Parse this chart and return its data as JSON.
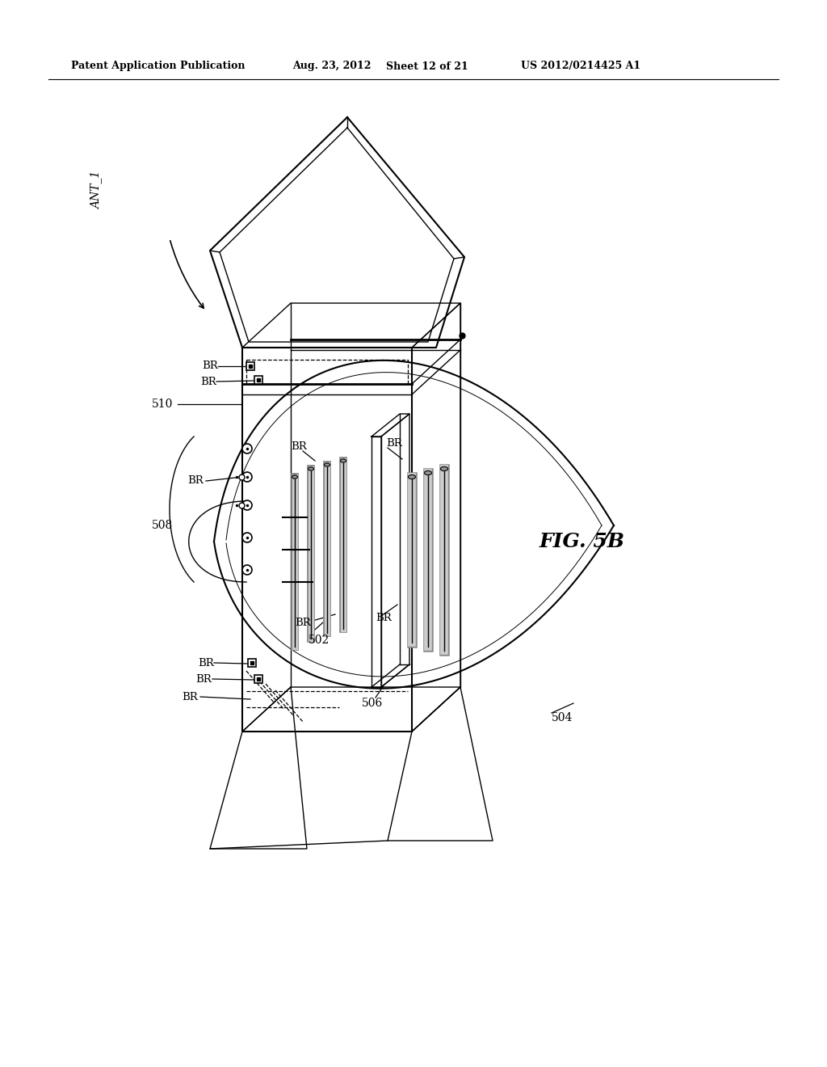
{
  "bg_color": "#ffffff",
  "header_text": "Patent Application Publication",
  "header_date": "Aug. 23, 2012",
  "header_sheet": "Sheet 12 of 21",
  "header_patent": "US 2012/0214425 A1",
  "fig_label": "FIG. 5B",
  "label_ANT1": "ANT_1",
  "label_510": "510",
  "label_508": "508",
  "label_502": "502",
  "label_504": "504",
  "label_506": "506",
  "label_BR": "BR"
}
